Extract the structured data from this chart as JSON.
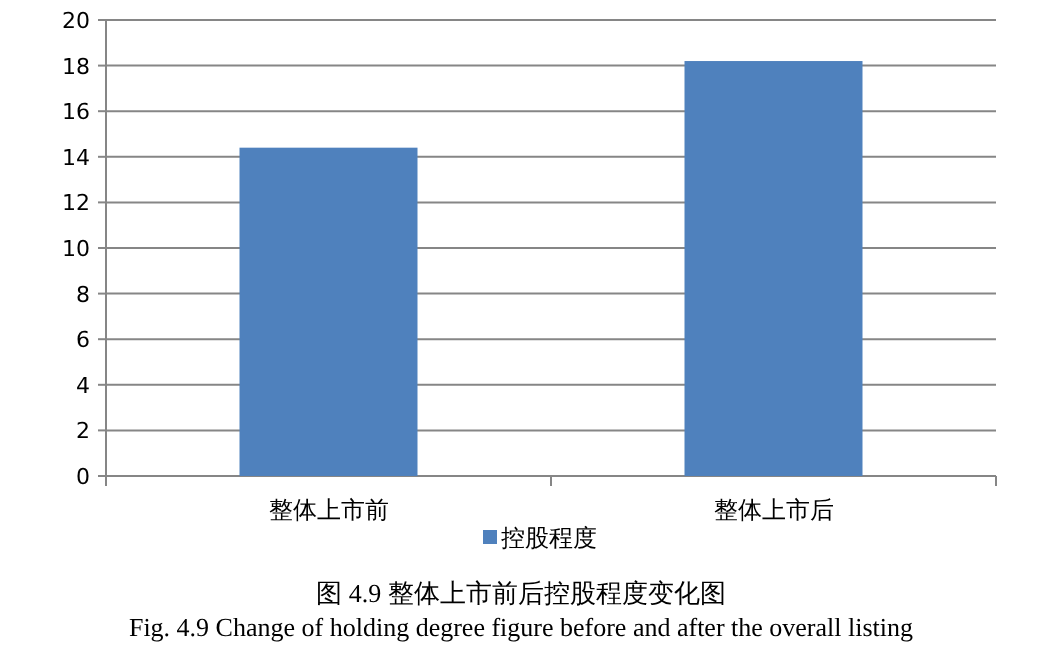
{
  "chart_data": {
    "type": "bar",
    "title": "图 4.9  整体上市前后控股程度变化图",
    "subtitle": "Fig. 4.9 Change of holding degree figure before and after the overall listing",
    "categories": [
      "整体上市前",
      "整体上市后"
    ],
    "series": [
      {
        "name": "控股程度",
        "color": "#4f81bd",
        "values": [
          14.4,
          18.2
        ]
      }
    ],
    "ylim": [
      0,
      20
    ],
    "yticks": [
      0,
      2,
      4,
      6,
      8,
      10,
      12,
      14,
      16,
      18,
      20
    ],
    "grid": "y",
    "legend": "bottom"
  }
}
